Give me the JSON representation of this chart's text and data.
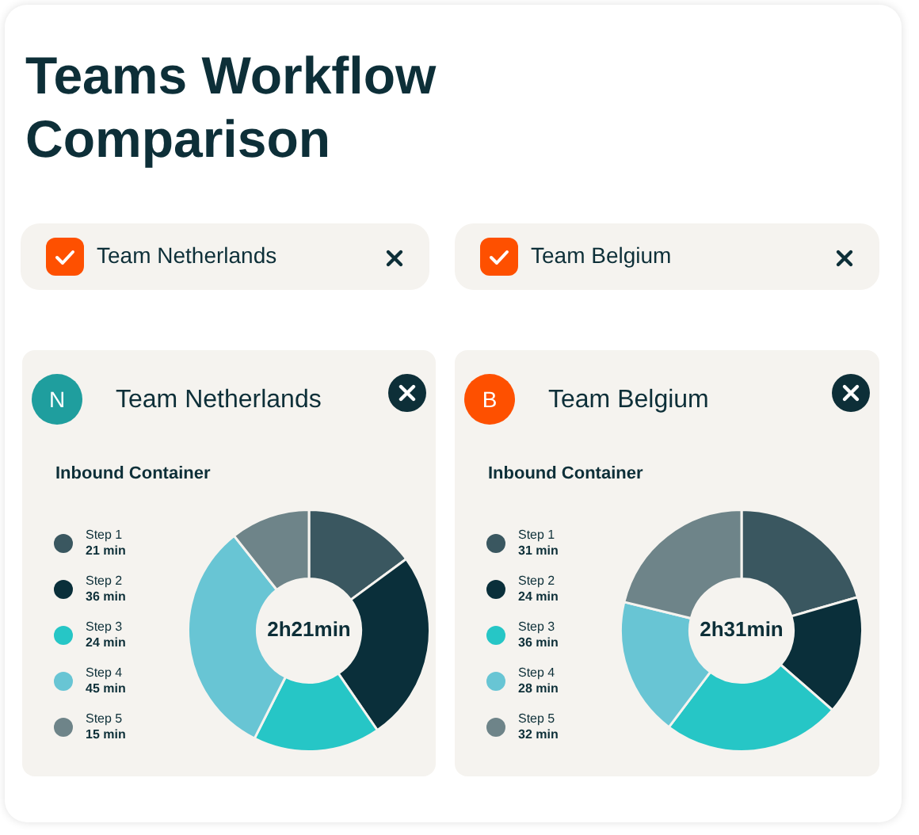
{
  "chart_data": [
    {
      "type": "other",
      "title": "Teams Workflow Comparison",
      "annotations": [
        "Team Netherlands",
        "Team Belgium"
      ]
    },
    {
      "type": "donut",
      "title": "Team Netherlands",
      "subtitle": "Inbound Container",
      "annotations": [
        "N",
        "2h21min"
      ],
      "categories": [
        "Step 1",
        "Step 2",
        "Step 3",
        "Step 4",
        "Step 5"
      ],
      "values": [
        21,
        36,
        24,
        45,
        15
      ],
      "value_labels": [
        "21 min",
        "36 min",
        "24 min",
        "45 min",
        "15 min"
      ],
      "colors": [
        "#3a5760",
        "#0a2f3a",
        "#26c6c6",
        "#68c5d4",
        "#6e8489"
      ],
      "legend": "left"
    },
    {
      "type": "donut",
      "title": "Team Belgium",
      "subtitle": "Inbound Container",
      "annotations": [
        "B",
        "2h31min"
      ],
      "categories": [
        "Step 1",
        "Step 2",
        "Step 3",
        "Step 4",
        "Step 5"
      ],
      "values": [
        31,
        24,
        36,
        28,
        32
      ],
      "value_labels": [
        "31 min",
        "24 min",
        "36 min",
        "28 min",
        "32 min"
      ],
      "colors": [
        "#3a5760",
        "#0a2f3a",
        "#26c6c6",
        "#68c5d4",
        "#6e8489"
      ],
      "legend": "left"
    }
  ]
}
